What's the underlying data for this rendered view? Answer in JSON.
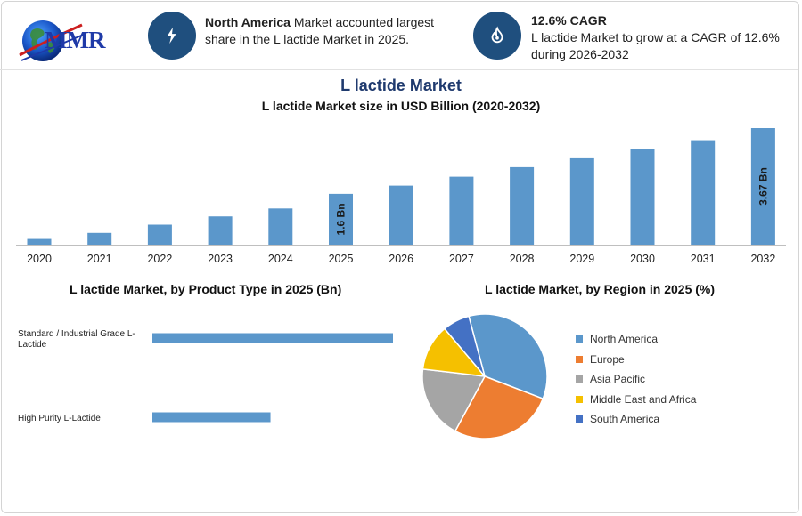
{
  "brand": {
    "logo_text": "MMR"
  },
  "kpis": [
    {
      "icon": "lightning-icon",
      "bold": "North America",
      "text": " Market accounted largest share in the L lactide Market in 2025."
    },
    {
      "icon": "flame-icon",
      "bold": "12.6% CAGR",
      "text": "L lactide Market to grow at a CAGR of 12.6% during 2026-2032"
    }
  ],
  "colors": {
    "bar": "#5b97cb",
    "kpi_circle": "#1f4f7e",
    "title": "#1f3a6e"
  },
  "chart_data": [
    {
      "type": "bar",
      "title": "L lactide Market",
      "subtitle": "L lactide Market size in USD Billion (2020-2032)",
      "categories": [
        "2020",
        "2021",
        "2022",
        "2023",
        "2024",
        "2025",
        "2026",
        "2027",
        "2028",
        "2029",
        "2030",
        "2031",
        "2032"
      ],
      "values": [
        0.18,
        0.37,
        0.63,
        0.89,
        1.14,
        1.6,
        1.86,
        2.14,
        2.44,
        2.72,
        3.01,
        3.29,
        3.67
      ],
      "data_labels": [
        {
          "index": 5,
          "text": "1.6 Bn"
        },
        {
          "index": 12,
          "text": "3.67 Bn"
        }
      ],
      "ylim": [
        0,
        3.67
      ],
      "grid": false
    },
    {
      "type": "bar",
      "orientation": "horizontal",
      "title": "L lactide Market, by Product Type in 2025 (Bn)",
      "categories": [
        "Standard / Industrial Grade L-Lactide",
        "High Purity L-Lactide"
      ],
      "values": [
        1.1,
        0.54
      ],
      "xlim": [
        0,
        1.1
      ],
      "grid": false
    },
    {
      "type": "pie",
      "title": "L lactide Market, by Region in 2025 (%)",
      "categories": [
        "North America",
        "Europe",
        "Asia Pacific",
        "Middle East and Africa",
        "South America"
      ],
      "values": [
        35,
        27,
        19,
        12,
        7
      ],
      "colors": [
        "#5b97cb",
        "#ed7d31",
        "#a5a5a5",
        "#f5c000",
        "#4471c4"
      ],
      "legend": "right"
    }
  ]
}
